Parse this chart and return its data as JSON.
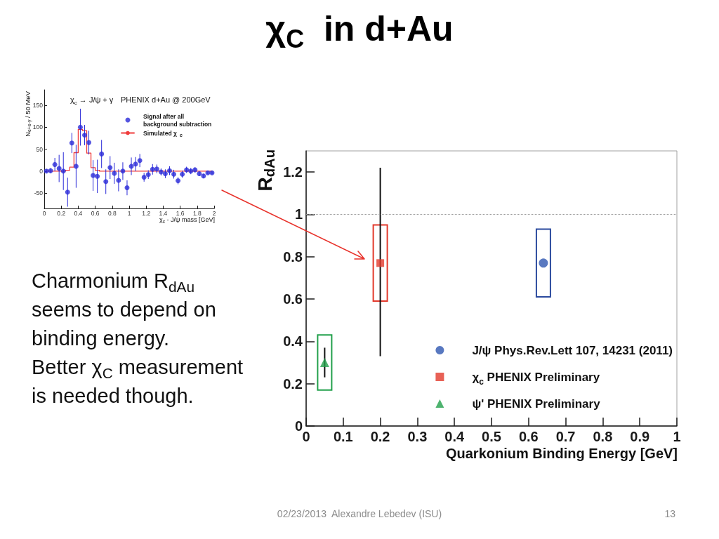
{
  "chart_data": [
    {
      "type": "other",
      "title": "χ$_{C}$  in d+Au",
      "annotations": [
        "Charmonium R$_{dAu}$\nseems to depend on\nbinding energy.\nBetter χ$_{C}$ measurement\nis needed though.",
        "02/23/2013  Alexandre Lebedev (ISU)",
        "13"
      ]
    },
    {
      "type": "scatter",
      "title": "χ$_{c}$ → J/ψ + γ",
      "subtitle": "PHENIX d+Au @ 200GeV",
      "xlabel": "χ$_{c}$ - J/ψ mass [GeV]",
      "ylabel": "N$_{e+e-γ}$ / 50 MeV",
      "x": [
        0.025,
        0.075,
        0.125,
        0.175,
        0.225,
        0.275,
        0.325,
        0.375,
        0.425,
        0.475,
        0.525,
        0.575,
        0.625,
        0.675,
        0.725,
        0.775,
        0.825,
        0.875,
        0.925,
        0.975,
        1.025,
        1.075,
        1.125,
        1.175,
        1.225,
        1.275,
        1.325,
        1.375,
        1.425,
        1.475,
        1.525,
        1.575,
        1.625,
        1.675,
        1.725,
        1.775,
        1.825,
        1.875,
        1.925,
        1.975
      ],
      "series": [
        {
          "name": "Signal after all background subtraction",
          "color": "#2a2ad8",
          "marker": "circle",
          "values": [
            0,
            1,
            15,
            6,
            0,
            -48,
            64,
            11,
            100,
            82,
            65,
            -10,
            -12,
            39,
            -24,
            8,
            -5,
            -21,
            0,
            -38,
            11,
            16,
            24,
            -14,
            -8,
            4,
            5,
            -2,
            -6,
            1,
            -7,
            -22,
            -7,
            3,
            0,
            3,
            -6,
            -11,
            -4,
            -4
          ],
          "errors": [
            4,
            6,
            15,
            31,
            43,
            33,
            23,
            49,
            42,
            23,
            27,
            35,
            38,
            32,
            28,
            26,
            24,
            25,
            20,
            17,
            20,
            16,
            15,
            10,
            10,
            12,
            10,
            8,
            10,
            10,
            10,
            8,
            8,
            7,
            7,
            6,
            5,
            5,
            3,
            3
          ]
        },
        {
          "name": "Simulated χ$_{c}$",
          "type": "step",
          "color": "#f03c3c",
          "marker": "none",
          "line_style": "solid",
          "values": [
            0,
            0,
            0,
            0,
            0,
            2,
            9,
            42,
            95,
            92,
            41,
            8,
            2,
            0,
            0,
            0,
            0,
            0,
            0,
            0,
            0,
            0,
            0,
            0,
            0,
            0,
            0,
            0,
            0,
            0,
            0,
            0,
            0,
            0,
            0,
            0,
            0,
            0,
            0,
            0
          ]
        }
      ],
      "xlim": [
        0,
        2
      ],
      "xticks": [
        0,
        0.2,
        0.4,
        0.6,
        0.8,
        1,
        1.2,
        1.4,
        1.6,
        1.8,
        2
      ],
      "ylim": [
        -85,
        185
      ],
      "yticks": [
        -50,
        0,
        50,
        100,
        150
      ],
      "legend": "top right",
      "grid": false
    },
    {
      "type": "scatter",
      "xlabel": "Quarkonium Binding Energy [GeV]",
      "ylabel": "R$_{dAu}$",
      "series": [
        {
          "name": "J/ψ Phys.Rev.Lett 107, 14231 (2011)",
          "color": "#2e56b0",
          "marker": "circle",
          "x": [
            0.64
          ],
          "values": [
            0.77
          ]
        },
        {
          "name": "χ$_{c}$ PHENIX Preliminary",
          "color": "#e2392c",
          "marker": "square",
          "x": [
            0.2
          ],
          "values": [
            0.77
          ],
          "errors": [
            [
              0.33,
              1.22
            ]
          ]
        },
        {
          "name": "ψ' PHENIX Preliminary",
          "color": "#22a04b",
          "marker": "triangle",
          "x": [
            0.05
          ],
          "values": [
            0.3
          ],
          "errors": [
            [
              0.23,
              0.37
            ]
          ]
        },
        {
          "type": "bar",
          "x": [
            0.05,
            0.2,
            0.64
          ],
          "base": [
            0.17,
            0.59,
            0.61
          ],
          "values": [
            0.26,
            0.36,
            0.32
          ],
          "colors": [
            "#22a04b",
            "#e2392c",
            "#2b4a9e"
          ]
        }
      ],
      "xlim": [
        0,
        1
      ],
      "xticks": [
        0,
        0.1,
        0.2,
        0.3,
        0.4,
        0.5,
        0.6,
        0.7,
        0.8,
        0.9,
        1
      ],
      "ylim": [
        0,
        1.3
      ],
      "yticks": [
        0,
        0.2,
        0.4,
        0.6,
        0.8,
        1,
        1.2
      ],
      "ref_lines": [
        {
          "axis": "y",
          "value": 1,
          "color": "#9a9a9a",
          "line_style": "dotted"
        }
      ],
      "legend": "bottom right",
      "grid": false
    }
  ]
}
